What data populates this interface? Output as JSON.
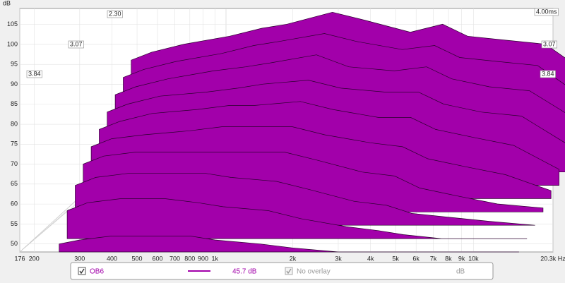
{
  "chart_data": {
    "type": "waterfall",
    "ylabel": "dB",
    "color": "#a200aa",
    "grid": true,
    "log_x": true,
    "xlim": [
      176,
      20300
    ],
    "ylim": [
      48,
      109
    ],
    "yticks": [
      50,
      55,
      60,
      65,
      70,
      75,
      80,
      85,
      90,
      95,
      100,
      105
    ],
    "xticks": [
      176,
      200,
      300,
      400,
      500,
      600,
      700,
      800,
      900,
      {
        "value": 1000,
        "label": "1k"
      },
      {
        "value": 2000,
        "label": "2k"
      },
      {
        "value": 3000,
        "label": "3k"
      },
      {
        "value": 4000,
        "label": "4k"
      },
      {
        "value": 5000,
        "label": "5k"
      },
      {
        "value": 6000,
        "label": "6k"
      },
      {
        "value": 7000,
        "label": "7k"
      },
      {
        "value": 8000,
        "label": "8k"
      },
      {
        "value": 9000,
        "label": "9k"
      },
      {
        "value": 10000,
        "label": "10k"
      },
      {
        "value": 20300,
        "label": "20.3k Hz"
      }
    ],
    "depth_labels": [
      "2.30",
      "3.07",
      "3.84",
      "4.00ms",
      "3.07",
      "3.84"
    ],
    "x": [
      250,
      300,
      400,
      600,
      800,
      1000,
      1500,
      2000,
      3000,
      4000,
      5000,
      7000,
      10000,
      15000
    ],
    "slices": [
      {
        "values": [
          66,
          68,
          70,
          72,
          74,
          75,
          78,
          76,
          73,
          75,
          72,
          71,
          70,
          62
        ]
      },
      {
        "values": [
          65,
          67,
          69,
          71,
          73,
          74,
          76,
          74,
          72,
          73,
          70,
          69,
          68,
          60
        ]
      },
      {
        "values": [
          64,
          66,
          68,
          70,
          71,
          72,
          74,
          71,
          70,
          71,
          68,
          66,
          65,
          58
        ]
      },
      {
        "values": [
          63,
          65,
          67,
          68,
          69,
          70,
          71,
          69,
          68,
          68,
          65,
          63,
          62,
          55
        ]
      },
      {
        "values": [
          62,
          64,
          66,
          67,
          68,
          68,
          69,
          67,
          65,
          65,
          62,
          60,
          58,
          52
        ]
      },
      {
        "values": [
          61,
          63,
          64,
          65,
          66,
          66,
          66,
          64,
          62,
          61,
          58,
          56,
          54,
          50
        ]
      },
      {
        "values": [
          60,
          62,
          63,
          63,
          63,
          63,
          63,
          61,
          58,
          57,
          54,
          52,
          50,
          49
        ]
      },
      {
        "values": [
          58,
          60,
          61,
          61,
          61,
          60,
          59,
          57,
          54,
          53,
          51,
          50,
          49,
          48
        ]
      },
      {
        "values": [
          55,
          57,
          58,
          58,
          57,
          56,
          55,
          53,
          51,
          50,
          49,
          48,
          48,
          48
        ]
      },
      {
        "values": [
          50,
          51,
          52,
          52,
          52,
          51,
          50,
          49,
          48,
          48,
          48,
          48,
          48,
          48
        ]
      }
    ],
    "legend": {
      "name": "OB6",
      "value_text": "45.7 dB",
      "overlay": "No overlay",
      "unit": "dB"
    }
  }
}
